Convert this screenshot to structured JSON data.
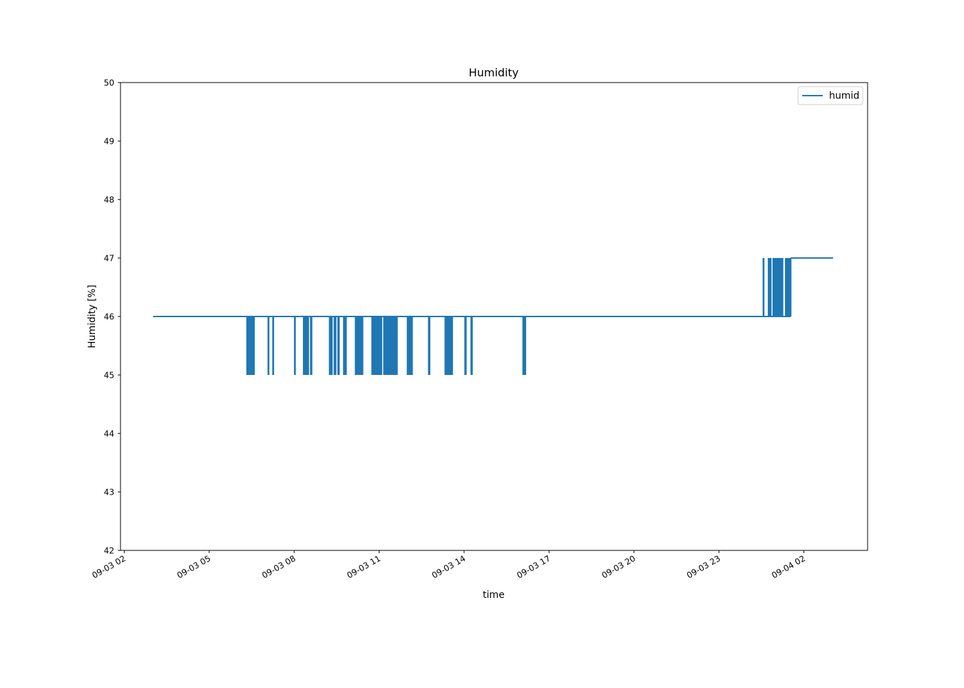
{
  "chart_data": {
    "type": "line",
    "title": "Humidity",
    "xlabel": "time",
    "ylabel": "Humidity [%]",
    "ylim": [
      42,
      50
    ],
    "yticks": [
      "42",
      "43",
      "44",
      "45",
      "46",
      "47",
      "48",
      "49",
      "50"
    ],
    "xlim": [
      "2023-09-03 01:52",
      "2023-09-04 04:15"
    ],
    "xticks": [
      {
        "time": "2023-09-03 02:00",
        "label": "09-03 02"
      },
      {
        "time": "2023-09-03 05:00",
        "label": "09-03 05"
      },
      {
        "time": "2023-09-03 08:00",
        "label": "09-03 08"
      },
      {
        "time": "2023-09-03 11:00",
        "label": "09-03 11"
      },
      {
        "time": "2023-09-03 14:00",
        "label": "09-03 14"
      },
      {
        "time": "2023-09-03 17:00",
        "label": "09-03 17"
      },
      {
        "time": "2023-09-03 20:00",
        "label": "09-03 20"
      },
      {
        "time": "2023-09-03 23:00",
        "label": "09-03 23"
      },
      {
        "time": "2023-09-04 02:00",
        "label": "09-04 02"
      }
    ],
    "legend": {
      "position": "top-right"
    },
    "series": [
      {
        "name": "humid",
        "color": "#1f77b4",
        "baseline": 46,
        "start": "2023-09-03 03:01",
        "end": "2023-09-04 03:02",
        "end_value": 47,
        "dips_to_45": [
          {
            "from": "2023-09-03 06:20",
            "to": "2023-09-03 06:35"
          },
          {
            "from": "2023-09-03 07:05",
            "to": "2023-09-03 07:06"
          },
          {
            "from": "2023-09-03 07:15",
            "to": "2023-09-03 07:16"
          },
          {
            "from": "2023-09-03 08:01",
            "to": "2023-09-03 08:02"
          },
          {
            "from": "2023-09-03 08:20",
            "to": "2023-09-03 08:30"
          },
          {
            "from": "2023-09-03 08:35",
            "to": "2023-09-03 08:37"
          },
          {
            "from": "2023-09-03 09:15",
            "to": "2023-09-03 09:20"
          },
          {
            "from": "2023-09-03 09:25",
            "to": "2023-09-03 09:28"
          },
          {
            "from": "2023-09-03 09:33",
            "to": "2023-09-03 09:35"
          },
          {
            "from": "2023-09-03 09:45",
            "to": "2023-09-03 09:50"
          },
          {
            "from": "2023-09-03 10:10",
            "to": "2023-09-03 10:25"
          },
          {
            "from": "2023-09-03 10:45",
            "to": "2023-09-03 11:05"
          },
          {
            "from": "2023-09-03 11:10",
            "to": "2023-09-03 11:38"
          },
          {
            "from": "2023-09-03 12:00",
            "to": "2023-09-03 12:10"
          },
          {
            "from": "2023-09-03 12:45",
            "to": "2023-09-03 12:47"
          },
          {
            "from": "2023-09-03 13:20",
            "to": "2023-09-03 13:35"
          },
          {
            "from": "2023-09-03 14:02",
            "to": "2023-09-03 14:04"
          },
          {
            "from": "2023-09-03 14:15",
            "to": "2023-09-03 14:17"
          },
          {
            "from": "2023-09-03 16:05",
            "to": "2023-09-03 16:10"
          }
        ],
        "rises_to_47": [
          {
            "from": "2023-09-04 00:34",
            "to": "2023-09-04 00:35"
          },
          {
            "from": "2023-09-04 00:45",
            "to": "2023-09-04 00:50"
          },
          {
            "from": "2023-09-04 00:55",
            "to": "2023-09-04 01:15"
          }
        ],
        "step_to_47": "2023-09-04 01:32"
      }
    ]
  }
}
